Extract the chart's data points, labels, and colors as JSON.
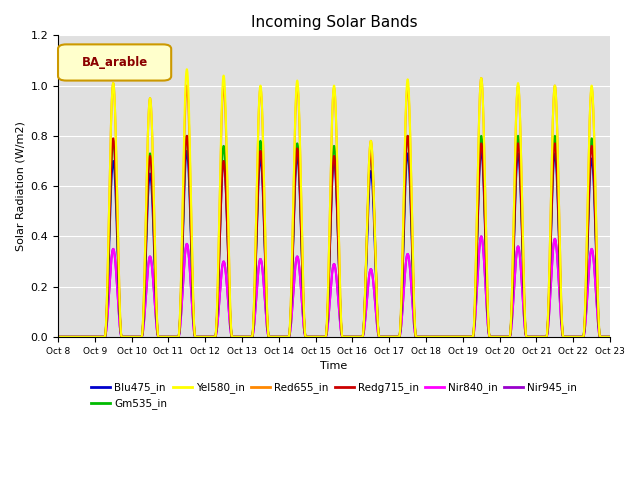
{
  "title": "Incoming Solar Bands",
  "xlabel": "Time",
  "ylabel": "Solar Radiation (W/m2)",
  "annotation_text": "BA_arable",
  "annotation_bg": "#ffffcc",
  "annotation_border": "#cc9900",
  "annotation_text_color": "#8b0000",
  "bg_color": "#e0e0e0",
  "ylim": [
    0,
    1.2
  ],
  "series": {
    "Blu475_in": {
      "color": "#0000cc",
      "lw": 1.5
    },
    "Gm535_in": {
      "color": "#00bb00",
      "lw": 1.5
    },
    "Yel580_in": {
      "color": "#ffff00",
      "lw": 1.5
    },
    "Red655_in": {
      "color": "#ff8800",
      "lw": 1.5
    },
    "Redg715_in": {
      "color": "#cc0000",
      "lw": 1.5
    },
    "Nir840_in": {
      "color": "#ff00ff",
      "lw": 1.5
    },
    "Nir945_in": {
      "color": "#9900cc",
      "lw": 1.5
    }
  },
  "n_days": 15,
  "start_day": 8,
  "ppd": 200,
  "day_peaks": {
    "Yel580_in": [
      0.0,
      1.01,
      0.95,
      1.065,
      1.04,
      1.0,
      1.02,
      1.0,
      0.78,
      1.025,
      0.0,
      1.03,
      1.01,
      1.0,
      1.0
    ],
    "Red655_in": [
      0.0,
      1.01,
      0.95,
      1.0,
      1.0,
      0.99,
      1.0,
      0.99,
      0.78,
      1.0,
      0.0,
      1.03,
      1.0,
      1.0,
      0.99
    ],
    "Redg715_in": [
      0.0,
      0.79,
      0.72,
      0.8,
      0.7,
      0.74,
      0.75,
      0.72,
      0.73,
      0.8,
      0.0,
      0.77,
      0.77,
      0.77,
      0.76
    ],
    "Gm535_in": [
      0.0,
      0.78,
      0.73,
      0.8,
      0.76,
      0.78,
      0.77,
      0.76,
      0.74,
      0.8,
      0.0,
      0.8,
      0.8,
      0.8,
      0.79
    ],
    "Blu475_in": [
      0.0,
      0.7,
      0.65,
      0.74,
      0.7,
      0.71,
      0.72,
      0.7,
      0.66,
      0.73,
      0.0,
      0.74,
      0.73,
      0.73,
      0.71
    ],
    "Nir840_in": [
      0.0,
      0.35,
      0.32,
      0.37,
      0.3,
      0.31,
      0.32,
      0.29,
      0.27,
      0.33,
      0.0,
      0.4,
      0.36,
      0.39,
      0.35
    ],
    "Nir945_in": [
      0.0,
      0.35,
      0.32,
      0.37,
      0.3,
      0.31,
      0.32,
      0.29,
      0.27,
      0.33,
      0.0,
      0.4,
      0.36,
      0.39,
      0.35
    ]
  },
  "plot_order": [
    "Nir945_in",
    "Nir840_in",
    "Blu475_in",
    "Gm535_in",
    "Redg715_in",
    "Red655_in",
    "Yel580_in"
  ],
  "legend_order": [
    "Blu475_in",
    "Gm535_in",
    "Yel580_in",
    "Red655_in",
    "Redg715_in",
    "Nir840_in",
    "Nir945_in"
  ]
}
